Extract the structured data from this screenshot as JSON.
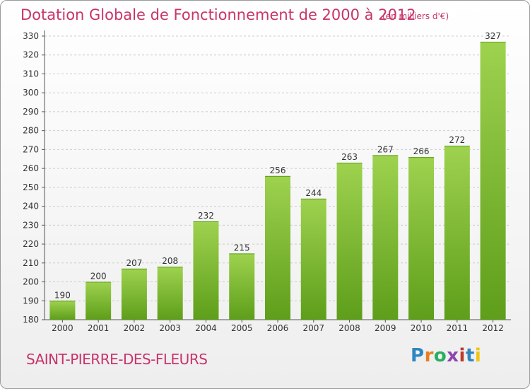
{
  "title": "Dotation Globale de Fonctionnement de 2000 à 2012",
  "unit_note": "(en milliers d'€)",
  "commune": "SAINT-PIERRE-DES-FLEURS",
  "logo": {
    "letters": [
      "P",
      "r",
      "o",
      "x",
      "i",
      "t",
      "i"
    ],
    "colors": [
      "#2e86c1",
      "#e67e22",
      "#27ae60",
      "#8e44ad",
      "#c0392b",
      "#2e86c1",
      "#f1c40f"
    ]
  },
  "colors": {
    "accent": "#c8346a",
    "bar_top": "#9ed24f",
    "bar_bottom": "#5e9e1a",
    "grid": "#cccccc"
  },
  "chart_data": {
    "type": "bar",
    "title": "Dotation Globale de Fonctionnement de 2000 à 2012",
    "xlabel": "",
    "ylabel": "",
    "categories": [
      "2000",
      "2001",
      "2002",
      "2003",
      "2004",
      "2005",
      "2006",
      "2007",
      "2008",
      "2009",
      "2010",
      "2011",
      "2012"
    ],
    "values": [
      190,
      200,
      207,
      208,
      232,
      215,
      256,
      244,
      263,
      267,
      266,
      272,
      327
    ],
    "ylim": [
      180,
      330
    ],
    "ytick_step": 10,
    "grid": true,
    "show_value_labels": true
  }
}
